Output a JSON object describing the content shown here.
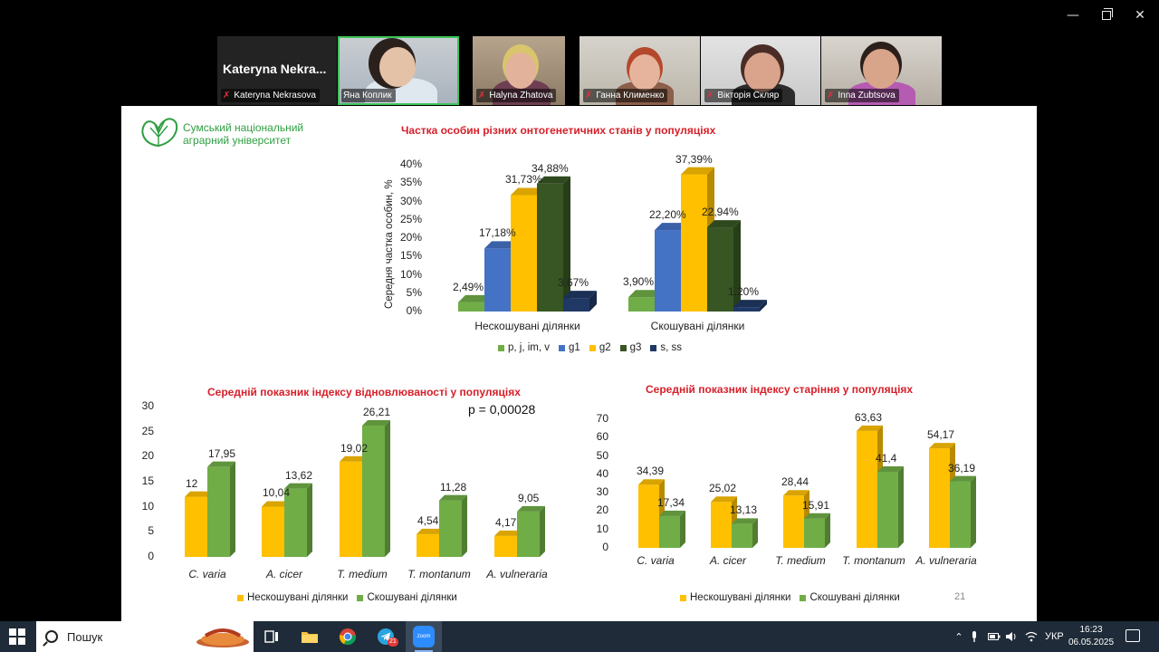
{
  "participants": [
    {
      "name": "Kateryna Nekrasova",
      "big_name": "Kateryna  Nekra...",
      "muted": true,
      "video": false
    },
    {
      "name": "Яна Коплик",
      "muted": false,
      "video": true,
      "active": true
    },
    {
      "name": "Halyna Zhatova",
      "muted": true,
      "video": true
    },
    {
      "name": "Ганна Клименко",
      "muted": true,
      "video": true
    },
    {
      "name": "Вікторія Скляр",
      "muted": true,
      "video": true
    },
    {
      "name": "Inna Zubtsova",
      "muted": true,
      "video": true
    }
  ],
  "slide": {
    "logo_line1": "Сумський національний",
    "logo_line2": "аграрний університет",
    "page_number": "21"
  },
  "colors": {
    "accent_green": "#2f9e41",
    "title_red": "#d6202a",
    "series_green": "#70ad47",
    "series_blue": "#4472c4",
    "series_yellow": "#ffc000",
    "series_darkgreen": "#375623",
    "series_navy": "#203864"
  },
  "chart_data": [
    {
      "type": "bar",
      "title": "Частка особин різних онтогенетичних станів у популяціях",
      "ylabel": "Середня частка особин, %",
      "ylim": [
        0,
        40
      ],
      "yticks": [
        "0%",
        "5%",
        "10%",
        "15%",
        "20%",
        "25%",
        "30%",
        "35%",
        "40%"
      ],
      "categories": [
        "Нескошувані ділянки",
        "Скошувані ділянки"
      ],
      "series": [
        {
          "name": "p, j, im, v",
          "color": "#70ad47",
          "values": [
            2.49,
            3.9
          ],
          "labels": [
            "2,49%",
            "3,90%"
          ]
        },
        {
          "name": "g1",
          "color": "#4472c4",
          "values": [
            17.18,
            22.2
          ],
          "labels": [
            "17,18%",
            "22,20%"
          ]
        },
        {
          "name": "g2",
          "color": "#ffc000",
          "values": [
            31.73,
            37.39
          ],
          "labels": [
            "31,73%",
            "37,39%"
          ]
        },
        {
          "name": "g3",
          "color": "#375623",
          "values": [
            34.88,
            22.94
          ],
          "labels": [
            "34,88%",
            "22,94%"
          ]
        },
        {
          "name": "s, ss",
          "color": "#203864",
          "values": [
            3.67,
            1.2
          ],
          "labels": [
            "3,67%",
            "1,20%"
          ]
        }
      ],
      "legend": "bottom"
    },
    {
      "type": "bar",
      "title": "Середній показник індексу відновлюваності у популяціях",
      "annotation": "p = 0,00028",
      "ylim": [
        0,
        30
      ],
      "yticks": [
        "0",
        "5",
        "10",
        "15",
        "20",
        "25",
        "30"
      ],
      "categories": [
        "C. varia",
        "A. cicer",
        "T. medium",
        "T. montanum",
        "A. vulneraria"
      ],
      "series": [
        {
          "name": "Нескошувані ділянки",
          "color": "#ffc000",
          "values": [
            12,
            10.04,
            19.02,
            4.54,
            4.17
          ],
          "labels": [
            "12",
            "10,04",
            "19,02",
            "4,54",
            "4,17"
          ]
        },
        {
          "name": "Скошувані ділянки",
          "color": "#70ad47",
          "values": [
            17.95,
            13.62,
            26.21,
            11.28,
            9.05
          ],
          "labels": [
            "17,95",
            "13,62",
            "26,21",
            "11,28",
            "9,05"
          ]
        }
      ],
      "legend": "bottom"
    },
    {
      "type": "bar",
      "title": "Середній показник індексу старіння у популяціях",
      "ylim": [
        0,
        70
      ],
      "yticks": [
        "0",
        "10",
        "20",
        "30",
        "40",
        "50",
        "60",
        "70"
      ],
      "categories": [
        "C. varia",
        "A. cicer",
        "T. medium",
        "T. montanum",
        "A. vulneraria"
      ],
      "series": [
        {
          "name": "Нескошувані ділянки",
          "color": "#ffc000",
          "values": [
            34.39,
            25.02,
            28.44,
            63.63,
            54.17
          ],
          "labels": [
            "34,39",
            "25,02",
            "28,44",
            "63,63",
            "54,17"
          ]
        },
        {
          "name": "Скошувані ділянки",
          "color": "#70ad47",
          "values": [
            17.34,
            13.13,
            15.91,
            41.4,
            36.19
          ],
          "labels": [
            "17,34",
            "13,13",
            "15,91",
            "41,4",
            "36,19"
          ]
        }
      ],
      "legend": "bottom"
    }
  ],
  "taskbar": {
    "search_placeholder": "Пошук",
    "telegram_badge": "21",
    "zoom_label": "zoom",
    "language": "УКР",
    "time": "16:23",
    "date": "06.05.2025"
  }
}
